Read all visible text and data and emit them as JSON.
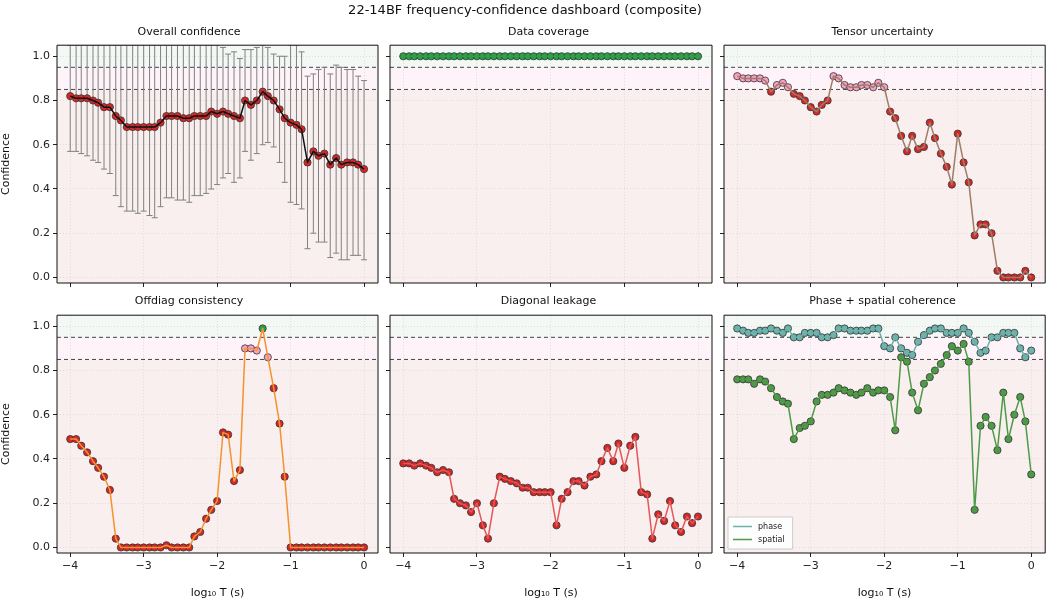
{
  "chart_data": [
    {
      "type": "other",
      "title": "22-14BF frequency-confidence dashboard (composite)"
    },
    {
      "type": "line",
      "title": "Overall confidence",
      "ylabel": "Confidence",
      "tick_labels": "y",
      "grid": true,
      "marker": "circle",
      "line_style": "solid",
      "xlim": [
        -4.18,
        0.19
      ],
      "ylim": [
        -0.025,
        1.05
      ],
      "xticks": [
        -4,
        -3,
        -2,
        -1,
        0
      ],
      "yticks": [
        {
          "value": 0,
          "label": "0.0"
        },
        {
          "value": 0.2,
          "label": "0.2"
        },
        {
          "value": 0.4,
          "label": "0.4"
        },
        {
          "value": 0.6,
          "label": "0.6"
        },
        {
          "value": 0.8,
          "label": "0.8"
        },
        {
          "value": 1,
          "label": "1.0"
        }
      ],
      "bands": [
        {
          "axis": "y",
          "from": -0.025,
          "to": 0.85,
          "color": "#f9efef"
        },
        {
          "axis": "y",
          "from": 0.85,
          "to": 0.95,
          "color": "#fdf3f8"
        },
        {
          "axis": "y",
          "from": 0.95,
          "to": 1.05,
          "color": "#f3f8f4"
        }
      ],
      "ref_lines": [
        {
          "axis": "y",
          "value": 0.95,
          "color": "#444444",
          "line_style": "dashed"
        },
        {
          "axis": "y",
          "value": 0.85,
          "color": "#444444",
          "line_style": "dashed"
        }
      ],
      "x": [
        -4,
        -3.92,
        -3.85,
        -3.77,
        -3.69,
        -3.62,
        -3.54,
        -3.46,
        -3.38,
        -3.31,
        -3.23,
        -3.15,
        -3.08,
        -3,
        -2.92,
        -2.85,
        -2.77,
        -2.69,
        -2.62,
        -2.54,
        -2.46,
        -2.38,
        -2.31,
        -2.23,
        -2.15,
        -2.08,
        -2,
        -1.92,
        -1.85,
        -1.77,
        -1.69,
        -1.62,
        -1.54,
        -1.46,
        -1.38,
        -1.31,
        -1.23,
        -1.15,
        -1.08,
        -1,
        -0.92,
        -0.85,
        -0.77,
        -0.69,
        -0.62,
        -0.54,
        -0.46,
        -0.38,
        -0.31,
        -0.23,
        -0.15,
        -0.08,
        0
      ],
      "series": [
        {
          "color": "#111111",
          "colors": [
            "#d62728",
            "#d62728",
            "#d62728",
            "#d62728",
            "#d62728",
            "#d62728",
            "#d62728",
            "#d62728",
            "#d62728",
            "#d62728",
            "#d62728",
            "#d62728",
            "#d62728",
            "#d62728",
            "#d62728",
            "#d62728",
            "#d62728",
            "#d62728",
            "#d62728",
            "#d62728",
            "#d62728",
            "#d62728",
            "#d62728",
            "#d62728",
            "#d62728",
            "#d62728",
            "#d62728",
            "#d62728",
            "#d62728",
            "#d62728",
            "#d62728",
            "#d62728",
            "#d62728",
            "#d62728",
            "#d62728",
            "#d62728",
            "#d62728",
            "#d62728",
            "#d62728",
            "#d62728",
            "#d62728",
            "#d62728",
            "#d62728",
            "#d62728",
            "#d62728",
            "#d62728",
            "#d62728",
            "#d62728",
            "#d62728",
            "#d62728",
            "#d62728",
            "#d62728",
            "#d62728"
          ],
          "values": [
            0.82,
            0.81,
            0.81,
            0.81,
            0.8,
            0.79,
            0.77,
            0.77,
            0.73,
            0.71,
            0.68,
            0.68,
            0.68,
            0.68,
            0.68,
            0.68,
            0.7,
            0.73,
            0.73,
            0.73,
            0.72,
            0.72,
            0.73,
            0.73,
            0.73,
            0.75,
            0.74,
            0.75,
            0.74,
            0.73,
            0.72,
            0.8,
            0.78,
            0.8,
            0.84,
            0.82,
            0.8,
            0.76,
            0.72,
            0.7,
            0.69,
            0.67,
            0.52,
            0.57,
            0.55,
            0.56,
            0.51,
            0.54,
            0.51,
            0.52,
            0.52,
            0.51,
            0.49
          ],
          "errors": [
            [
              0.57,
              1.05
            ],
            [
              0.57,
              1.05
            ],
            [
              0.56,
              1.05
            ],
            [
              0.55,
              1.05
            ],
            [
              0.53,
              1.05
            ],
            [
              0.52,
              1.05
            ],
            [
              0.49,
              1.05
            ],
            [
              0.47,
              1.05
            ],
            [
              0.37,
              1.05
            ],
            [
              0.32,
              1.05
            ],
            [
              0.3,
              1.05
            ],
            [
              0.3,
              1.05
            ],
            [
              0.29,
              1.05
            ],
            [
              0.3,
              1.05
            ],
            [
              0.28,
              1.05
            ],
            [
              0.27,
              1.05
            ],
            [
              0.32,
              1.05
            ],
            [
              0.36,
              1.05
            ],
            [
              0.36,
              1.05
            ],
            [
              0.35,
              1.05
            ],
            [
              0.35,
              1.05
            ],
            [
              0.34,
              1.05
            ],
            [
              0.37,
              1.05
            ],
            [
              0.37,
              1.05
            ],
            [
              0.38,
              1.05
            ],
            [
              0.4,
              1.05
            ],
            [
              0.42,
              1.05
            ],
            [
              0.45,
              1.04
            ],
            [
              0.47,
              1.01
            ],
            [
              0.43,
              1.02
            ],
            [
              0.45,
              0.99
            ],
            [
              0.57,
              1.03
            ],
            [
              0.53,
              1.03
            ],
            [
              0.56,
              1.04
            ],
            [
              0.6,
              1.05
            ],
            [
              0.61,
              1.04
            ],
            [
              0.59,
              1.01
            ],
            [
              0.52,
              1.0
            ],
            [
              0.43,
              1.0
            ],
            [
              0.34,
              1.05
            ],
            [
              0.33,
              1.05
            ],
            [
              0.31,
              1.02
            ],
            [
              0.13,
              0.91
            ],
            [
              0.2,
              0.92
            ],
            [
              0.16,
              0.94
            ],
            [
              0.16,
              0.95
            ],
            [
              0.09,
              0.92
            ],
            [
              0.11,
              0.96
            ],
            [
              0.08,
              0.95
            ],
            [
              0.08,
              0.94
            ],
            [
              0.1,
              0.94
            ],
            [
              0.1,
              0.91
            ],
            [
              0.08,
              0.89
            ]
          ]
        }
      ]
    },
    {
      "type": "line",
      "title": "Data coverage",
      "tick_labels": false,
      "grid": true,
      "marker": "circle",
      "line_style": "solid",
      "xlim": [
        -4.18,
        0.19
      ],
      "ylim": [
        -0.025,
        1.05
      ],
      "xticks": [
        -4,
        -3,
        -2,
        -1,
        0
      ],
      "yticks": [
        0,
        0.2,
        0.4,
        0.6,
        0.8,
        1
      ],
      "bands": [
        {
          "axis": "y",
          "from": -0.025,
          "to": 0.85,
          "color": "#f9efef"
        },
        {
          "axis": "y",
          "from": 0.85,
          "to": 0.95,
          "color": "#fdf3f8"
        },
        {
          "axis": "y",
          "from": 0.95,
          "to": 1.05,
          "color": "#f3f8f4"
        }
      ],
      "ref_lines": [
        {
          "axis": "y",
          "value": 0.95,
          "color": "#444444",
          "line_style": "dashed"
        },
        {
          "axis": "y",
          "value": 0.85,
          "color": "#444444",
          "line_style": "dashed"
        }
      ],
      "x": [
        -4,
        -3.92,
        -3.85,
        -3.77,
        -3.69,
        -3.62,
        -3.54,
        -3.46,
        -3.38,
        -3.31,
        -3.23,
        -3.15,
        -3.08,
        -3,
        -2.92,
        -2.85,
        -2.77,
        -2.69,
        -2.62,
        -2.54,
        -2.46,
        -2.38,
        -2.31,
        -2.23,
        -2.15,
        -2.08,
        -2,
        -1.92,
        -1.85,
        -1.77,
        -1.69,
        -1.62,
        -1.54,
        -1.46,
        -1.38,
        -1.31,
        -1.23,
        -1.15,
        -1.08,
        -1,
        -0.92,
        -0.85,
        -0.77,
        -0.69,
        -0.62,
        -0.54,
        -0.46,
        -0.38,
        -0.31,
        -0.23,
        -0.15,
        -0.08,
        0
      ],
      "series": [
        {
          "color": "#2ca048",
          "values": [
            1,
            1,
            1,
            1,
            1,
            1,
            1,
            1,
            1,
            1,
            1,
            1,
            1,
            1,
            1,
            1,
            1,
            1,
            1,
            1,
            1,
            1,
            1,
            1,
            1,
            1,
            1,
            1,
            1,
            1,
            1,
            1,
            1,
            1,
            1,
            1,
            1,
            1,
            1,
            1,
            1,
            1,
            1,
            1,
            1,
            1,
            1,
            1,
            1,
            1,
            1,
            1,
            1
          ]
        }
      ]
    },
    {
      "type": "line",
      "title": "Tensor uncertainty",
      "tick_labels": false,
      "grid": true,
      "marker": "circle",
      "line_style": "solid",
      "xlim": [
        -4.18,
        0.19
      ],
      "ylim": [
        -0.025,
        1.05
      ],
      "xticks": [
        -4,
        -3,
        -2,
        -1,
        0
      ],
      "yticks": [
        0,
        0.2,
        0.4,
        0.6,
        0.8,
        1
      ],
      "bands": [
        {
          "axis": "y",
          "from": -0.025,
          "to": 0.85,
          "color": "#f9efef"
        },
        {
          "axis": "y",
          "from": 0.85,
          "to": 0.95,
          "color": "#fdf3f8"
        },
        {
          "axis": "y",
          "from": 0.95,
          "to": 1.05,
          "color": "#f3f8f4"
        }
      ],
      "ref_lines": [
        {
          "axis": "y",
          "value": 0.95,
          "color": "#444444",
          "line_style": "dashed"
        },
        {
          "axis": "y",
          "value": 0.85,
          "color": "#444444",
          "line_style": "dashed"
        }
      ],
      "x": [
        -4,
        -3.92,
        -3.85,
        -3.77,
        -3.69,
        -3.62,
        -3.54,
        -3.46,
        -3.38,
        -3.31,
        -3.23,
        -3.15,
        -3.08,
        -3,
        -2.92,
        -2.85,
        -2.77,
        -2.69,
        -2.62,
        -2.54,
        -2.46,
        -2.38,
        -2.31,
        -2.23,
        -2.15,
        -2.08,
        -2,
        -1.92,
        -1.85,
        -1.77,
        -1.69,
        -1.62,
        -1.54,
        -1.46,
        -1.38,
        -1.31,
        -1.23,
        -1.15,
        -1.08,
        -1,
        -0.92,
        -0.85,
        -0.77,
        -0.69,
        -0.62,
        -0.54,
        -0.46,
        -0.38,
        -0.31,
        -0.23,
        -0.15,
        -0.08,
        0
      ],
      "series": [
        {
          "color": "#a07c68",
          "colors": [
            "#f7a1c4",
            "#f7a1c4",
            "#f7a1c4",
            "#f7a1c4",
            "#f7a1c4",
            "#f7a1c4",
            "#d62728",
            "#f7a1c4",
            "#f7a1c4",
            "#f7a1c4",
            "#d62728",
            "#d62728",
            "#d62728",
            "#d62728",
            "#d62728",
            "#d62728",
            "#d62728",
            "#f7a1c4",
            "#f7a1c4",
            "#f7a1c4",
            "#f7a1c4",
            "#f7a1c4",
            "#f7a1c4",
            "#f7a1c4",
            "#f7a1c4",
            "#f7a1c4",
            "#f7a1c4",
            "#d62728",
            "#d62728",
            "#d62728",
            "#d62728",
            "#d62728",
            "#d62728",
            "#d62728",
            "#d62728",
            "#d62728",
            "#d62728",
            "#d62728",
            "#d62728",
            "#d62728",
            "#d62728",
            "#d62728",
            "#d62728",
            "#d62728",
            "#d62728",
            "#d62728",
            "#d62728",
            "#d62728",
            "#d62728",
            "#d62728",
            "#d62728",
            "#d62728",
            "#d62728"
          ],
          "values": [
            0.91,
            0.9,
            0.9,
            0.9,
            0.9,
            0.89,
            0.84,
            0.87,
            0.88,
            0.86,
            0.83,
            0.82,
            0.8,
            0.77,
            0.75,
            0.78,
            0.8,
            0.91,
            0.9,
            0.87,
            0.86,
            0.86,
            0.87,
            0.87,
            0.86,
            0.88,
            0.86,
            0.75,
            0.72,
            0.64,
            0.57,
            0.64,
            0.58,
            0.59,
            0.7,
            0.63,
            0.56,
            0.5,
            0.42,
            0.65,
            0.52,
            0.43,
            0.19,
            0.24,
            0.24,
            0.2,
            0.03,
            0,
            0,
            0,
            0,
            0.03,
            0
          ]
        }
      ]
    },
    {
      "type": "line",
      "title": "Offdiag consistency",
      "xlabel": "log₁₀ T (s)",
      "ylabel": "Confidence",
      "grid": true,
      "marker": "circle",
      "line_style": "solid",
      "xlim": [
        -4.18,
        0.19
      ],
      "ylim": [
        -0.025,
        1.05
      ],
      "xticks": [
        {
          "value": -4,
          "label": "−4"
        },
        {
          "value": -3,
          "label": "−3"
        },
        {
          "value": -2,
          "label": "−2"
        },
        {
          "value": -1,
          "label": "−1"
        },
        {
          "value": 0,
          "label": "0"
        }
      ],
      "yticks": [
        {
          "value": 0,
          "label": "0.0"
        },
        {
          "value": 0.2,
          "label": "0.2"
        },
        {
          "value": 0.4,
          "label": "0.4"
        },
        {
          "value": 0.6,
          "label": "0.6"
        },
        {
          "value": 0.8,
          "label": "0.8"
        },
        {
          "value": 1,
          "label": "1.0"
        }
      ],
      "bands": [
        {
          "axis": "y",
          "from": -0.025,
          "to": 0.85,
          "color": "#f9efef"
        },
        {
          "axis": "y",
          "from": 0.85,
          "to": 0.95,
          "color": "#fdf3f8"
        },
        {
          "axis": "y",
          "from": 0.95,
          "to": 1.05,
          "color": "#f3f8f4"
        }
      ],
      "ref_lines": [
        {
          "axis": "y",
          "value": 0.95,
          "color": "#444444",
          "line_style": "dashed"
        },
        {
          "axis": "y",
          "value": 0.85,
          "color": "#444444",
          "line_style": "dashed"
        }
      ],
      "x": [
        -4,
        -3.92,
        -3.85,
        -3.77,
        -3.69,
        -3.62,
        -3.54,
        -3.46,
        -3.38,
        -3.31,
        -3.23,
        -3.15,
        -3.08,
        -3,
        -2.92,
        -2.85,
        -2.77,
        -2.69,
        -2.62,
        -2.54,
        -2.46,
        -2.38,
        -2.31,
        -2.23,
        -2.15,
        -2.08,
        -2,
        -1.92,
        -1.85,
        -1.77,
        -1.69,
        -1.62,
        -1.54,
        -1.46,
        -1.38,
        -1.31,
        -1.23,
        -1.15,
        -1.08,
        -1,
        -0.92,
        -0.85,
        -0.77,
        -0.69,
        -0.62,
        -0.54,
        -0.46,
        -0.38,
        -0.31,
        -0.23,
        -0.15,
        -0.08,
        0
      ],
      "series": [
        {
          "color": "#f5922e",
          "colors": [
            "#d62728",
            "#d62728",
            "#d62728",
            "#d62728",
            "#d62728",
            "#d62728",
            "#d62728",
            "#d62728",
            "#d62728",
            "#d62728",
            "#d62728",
            "#d62728",
            "#d62728",
            "#d62728",
            "#d62728",
            "#d62728",
            "#d62728",
            "#d62728",
            "#d62728",
            "#d62728",
            "#d62728",
            "#d62728",
            "#d62728",
            "#d62728",
            "#d62728",
            "#d62728",
            "#d62728",
            "#d62728",
            "#d62728",
            "#d62728",
            "#d62728",
            "#f7a1c4",
            "#f7a1c4",
            "#f7a1c4",
            "#2ca048",
            "#f7a1c4",
            "#d62728",
            "#d62728",
            "#d62728",
            "#d62728",
            "#d62728",
            "#d62728",
            "#d62728",
            "#d62728",
            "#d62728",
            "#d62728",
            "#d62728",
            "#d62728",
            "#d62728",
            "#d62728",
            "#d62728",
            "#d62728",
            "#d62728"
          ],
          "values": [
            0.49,
            0.49,
            0.46,
            0.43,
            0.39,
            0.36,
            0.32,
            0.26,
            0.04,
            0,
            0,
            0,
            0,
            0,
            0,
            0,
            0,
            0.01,
            0,
            0,
            0,
            0,
            0.05,
            0.07,
            0.13,
            0.17,
            0.21,
            0.52,
            0.51,
            0.3,
            0.35,
            0.9,
            0.9,
            0.89,
            0.99,
            0.86,
            0.72,
            0.56,
            0.32,
            0,
            0,
            0,
            0,
            0,
            0,
            0,
            0,
            0,
            0,
            0,
            0,
            0,
            0
          ]
        }
      ]
    },
    {
      "type": "line",
      "title": "Diagonal leakage",
      "xlabel": "log₁₀ T (s)",
      "tick_labels": "x",
      "grid": true,
      "marker": "circle",
      "line_style": "solid",
      "xlim": [
        -4.18,
        0.19
      ],
      "ylim": [
        -0.025,
        1.05
      ],
      "xticks": [
        {
          "value": -4,
          "label": "−4"
        },
        {
          "value": -3,
          "label": "−3"
        },
        {
          "value": -2,
          "label": "−2"
        },
        {
          "value": -1,
          "label": "−1"
        },
        {
          "value": 0,
          "label": "0"
        }
      ],
      "yticks": [
        0,
        0.2,
        0.4,
        0.6,
        0.8,
        1
      ],
      "bands": [
        {
          "axis": "y",
          "from": -0.025,
          "to": 0.85,
          "color": "#f9efef"
        },
        {
          "axis": "y",
          "from": 0.85,
          "to": 0.95,
          "color": "#fdf3f8"
        },
        {
          "axis": "y",
          "from": 0.95,
          "to": 1.05,
          "color": "#f3f8f4"
        }
      ],
      "ref_lines": [
        {
          "axis": "y",
          "value": 0.95,
          "color": "#444444",
          "line_style": "dashed"
        },
        {
          "axis": "y",
          "value": 0.85,
          "color": "#444444",
          "line_style": "dashed"
        }
      ],
      "x": [
        -4,
        -3.92,
        -3.85,
        -3.77,
        -3.69,
        -3.62,
        -3.54,
        -3.46,
        -3.38,
        -3.31,
        -3.23,
        -3.15,
        -3.08,
        -3,
        -2.92,
        -2.85,
        -2.77,
        -2.69,
        -2.62,
        -2.54,
        -2.46,
        -2.38,
        -2.31,
        -2.23,
        -2.15,
        -2.08,
        -2,
        -1.92,
        -1.85,
        -1.77,
        -1.69,
        -1.62,
        -1.54,
        -1.46,
        -1.38,
        -1.31,
        -1.23,
        -1.15,
        -1.08,
        -1,
        -0.92,
        -0.85,
        -0.77,
        -0.69,
        -0.62,
        -0.54,
        -0.46,
        -0.38,
        -0.31,
        -0.23,
        -0.15,
        -0.08,
        0
      ],
      "series": [
        {
          "color": "#e45756",
          "colors": [
            "#d62728",
            "#d62728",
            "#d62728",
            "#d62728",
            "#d62728",
            "#d62728",
            "#d62728",
            "#d62728",
            "#d62728",
            "#d62728",
            "#d62728",
            "#d62728",
            "#d62728",
            "#d62728",
            "#d62728",
            "#d62728",
            "#d62728",
            "#d62728",
            "#d62728",
            "#d62728",
            "#d62728",
            "#d62728",
            "#d62728",
            "#d62728",
            "#d62728",
            "#d62728",
            "#d62728",
            "#d62728",
            "#d62728",
            "#d62728",
            "#d62728",
            "#d62728",
            "#d62728",
            "#d62728",
            "#d62728",
            "#d62728",
            "#d62728",
            "#d62728",
            "#d62728",
            "#d62728",
            "#d62728",
            "#d62728",
            "#d62728",
            "#d62728",
            "#d62728",
            "#d62728",
            "#d62728",
            "#d62728",
            "#d62728",
            "#d62728",
            "#d62728",
            "#d62728",
            "#d62728"
          ],
          "values": [
            0.38,
            0.38,
            0.37,
            0.38,
            0.37,
            0.36,
            0.34,
            0.35,
            0.34,
            0.22,
            0.2,
            0.19,
            0.16,
            0.2,
            0.1,
            0.04,
            0.2,
            0.32,
            0.31,
            0.3,
            0.29,
            0.27,
            0.27,
            0.25,
            0.25,
            0.25,
            0.25,
            0.1,
            0.22,
            0.25,
            0.3,
            0.3,
            0.28,
            0.32,
            0.33,
            0.39,
            0.45,
            0.39,
            0.47,
            0.36,
            0.46,
            0.5,
            0.25,
            0.24,
            0.04,
            0.15,
            0.12,
            0.21,
            0.1,
            0.07,
            0.14,
            0.11,
            0.14
          ]
        }
      ]
    },
    {
      "type": "line",
      "title": "Phase + spatial coherence",
      "xlabel": "log₁₀ T (s)",
      "tick_labels": "x",
      "grid": true,
      "marker": "circle",
      "line_style": "solid",
      "legend": "bottom left",
      "xlim": [
        -4.18,
        0.19
      ],
      "ylim": [
        -0.025,
        1.05
      ],
      "xticks": [
        {
          "value": -4,
          "label": "−4"
        },
        {
          "value": -3,
          "label": "−3"
        },
        {
          "value": -2,
          "label": "−2"
        },
        {
          "value": -1,
          "label": "−1"
        },
        {
          "value": 0,
          "label": "0"
        }
      ],
      "yticks": [
        0,
        0.2,
        0.4,
        0.6,
        0.8,
        1
      ],
      "bands": [
        {
          "axis": "y",
          "from": -0.025,
          "to": 0.85,
          "color": "#f9efef"
        },
        {
          "axis": "y",
          "from": 0.85,
          "to": 0.95,
          "color": "#fdf3f8"
        },
        {
          "axis": "y",
          "from": 0.95,
          "to": 1.05,
          "color": "#f3f8f4"
        }
      ],
      "ref_lines": [
        {
          "axis": "y",
          "value": 0.95,
          "color": "#444444",
          "line_style": "dashed"
        },
        {
          "axis": "y",
          "value": 0.85,
          "color": "#444444",
          "line_style": "dashed"
        }
      ],
      "x": [
        -4,
        -3.92,
        -3.85,
        -3.77,
        -3.69,
        -3.62,
        -3.54,
        -3.46,
        -3.38,
        -3.31,
        -3.23,
        -3.15,
        -3.08,
        -3,
        -2.92,
        -2.85,
        -2.77,
        -2.69,
        -2.62,
        -2.54,
        -2.46,
        -2.38,
        -2.31,
        -2.23,
        -2.15,
        -2.08,
        -2,
        -1.92,
        -1.85,
        -1.77,
        -1.69,
        -1.62,
        -1.54,
        -1.46,
        -1.38,
        -1.31,
        -1.23,
        -1.15,
        -1.08,
        -1,
        -0.92,
        -0.85,
        -0.77,
        -0.69,
        -0.62,
        -0.54,
        -0.46,
        -0.38,
        -0.31,
        -0.23,
        -0.15,
        -0.08,
        0
      ],
      "series": [
        {
          "name": "phase",
          "color": "#6db3ac",
          "values": [
            0.99,
            0.98,
            0.97,
            0.97,
            0.98,
            0.98,
            0.99,
            0.98,
            0.97,
            0.99,
            0.95,
            0.95,
            0.97,
            0.97,
            0.97,
            0.95,
            0.95,
            0.96,
            0.99,
            0.99,
            0.98,
            0.98,
            0.98,
            0.98,
            0.99,
            0.99,
            0.91,
            0.9,
            0.95,
            0.9,
            0.88,
            0.87,
            0.93,
            0.96,
            0.98,
            0.99,
            0.99,
            0.97,
            0.97,
            0.97,
            0.99,
            0.97,
            0.93,
            0.88,
            0.89,
            0.95,
            0.95,
            0.97,
            0.97,
            0.97,
            0.9,
            0.86,
            0.89
          ]
        },
        {
          "name": "spatial",
          "color": "#4e9a47",
          "values": [
            0.76,
            0.76,
            0.76,
            0.74,
            0.76,
            0.75,
            0.72,
            0.68,
            0.66,
            0.65,
            0.49,
            0.54,
            0.55,
            0.57,
            0.66,
            0.69,
            0.69,
            0.7,
            0.72,
            0.71,
            0.7,
            0.69,
            0.7,
            0.72,
            0.7,
            0.71,
            0.71,
            0.68,
            0.53,
            0.86,
            0.84,
            0.7,
            0.62,
            0.74,
            0.77,
            0.8,
            0.83,
            0.87,
            0.91,
            0.89,
            0.92,
            0.84,
            0.17,
            0.55,
            0.59,
            0.55,
            0.44,
            0.7,
            0.49,
            0.6,
            0.68,
            0.57,
            0.33
          ]
        }
      ]
    }
  ]
}
